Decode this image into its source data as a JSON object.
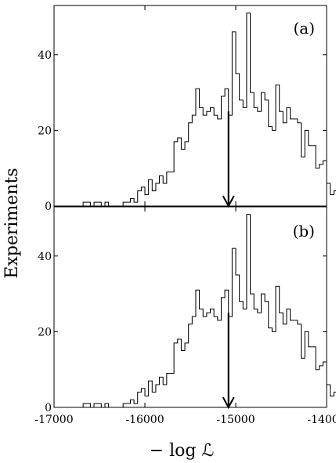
{
  "chart_data": {
    "type": "histogram",
    "ylabel": "Experiments",
    "xlabel": "− log ℒ",
    "xlim": [
      -17000,
      -14000
    ],
    "xticks": [
      -17000,
      -16000,
      -15000,
      -14000
    ],
    "xtick_labels": [
      "-17000",
      "-16000",
      "-15000",
      "-14000"
    ],
    "bin_width": 40,
    "bin_start": -16680,
    "panels": [
      {
        "label": "(a)",
        "ylim": [
          0,
          53
        ],
        "yticks": [
          0,
          20,
          40
        ],
        "ytick_labels": [
          "0",
          "20",
          "40"
        ],
        "arrow_x": -15080,
        "arrow_top": 25,
        "counts": [
          1,
          1,
          0,
          1,
          1,
          0,
          1,
          0,
          0,
          0,
          0,
          1,
          1,
          2,
          1,
          4,
          5,
          3,
          7,
          4,
          6,
          8,
          6,
          9,
          9,
          17,
          18,
          15,
          17,
          22,
          24,
          31,
          26,
          24,
          25,
          26,
          24,
          23,
          29,
          31,
          24,
          46,
          35,
          28,
          26,
          51,
          30,
          26,
          25,
          30,
          28,
          21,
          20,
          32,
          25,
          22,
          26,
          23,
          23,
          22,
          13,
          20,
          16,
          16,
          10,
          11,
          12,
          6,
          3,
          4,
          1,
          2,
          0,
          0,
          1,
          0,
          2,
          0,
          0,
          1
        ]
      },
      {
        "label": "(b)",
        "ylim": [
          0,
          53
        ],
        "yticks": [
          0,
          20,
          40
        ],
        "ytick_labels": [
          "0",
          "20",
          "40"
        ],
        "arrow_x": -15080,
        "arrow_top": 25,
        "counts": [
          1,
          1,
          0,
          1,
          1,
          0,
          1,
          0,
          0,
          0,
          0,
          1,
          1,
          2,
          1,
          4,
          5,
          3,
          7,
          4,
          6,
          8,
          6,
          9,
          9,
          17,
          18,
          15,
          17,
          22,
          24,
          31,
          26,
          24,
          25,
          26,
          24,
          23,
          29,
          31,
          24,
          42,
          35,
          28,
          26,
          51,
          30,
          26,
          25,
          30,
          28,
          21,
          20,
          32,
          25,
          22,
          26,
          23,
          23,
          22,
          13,
          20,
          16,
          16,
          10,
          11,
          12,
          6,
          3,
          4,
          1,
          2,
          0,
          0,
          1,
          0,
          2,
          0,
          0,
          1
        ]
      }
    ]
  }
}
